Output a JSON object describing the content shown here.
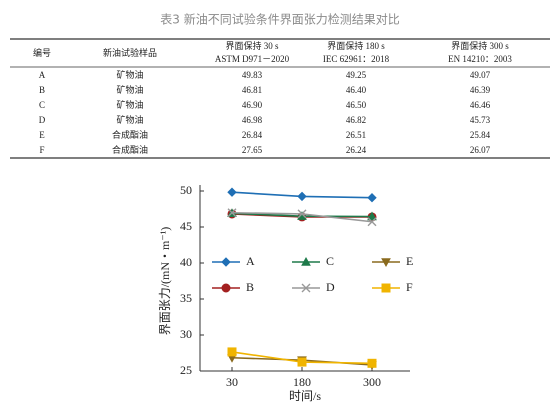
{
  "title": "表3 新油不同试验条件界面张力检测结果对比",
  "table": {
    "columns": [
      {
        "title": "编号"
      },
      {
        "title": "新油试验样品"
      },
      {
        "title": "界面保持 30 s",
        "standard": "ASTM D971－2020"
      },
      {
        "title": "界面保持 180 s",
        "standard": "IEC 62961：2018"
      },
      {
        "title": "界面保持 300 s",
        "standard": "EN 14210：2003"
      }
    ],
    "rows": [
      [
        "A",
        "矿物油",
        "49.83",
        "49.25",
        "49.07"
      ],
      [
        "B",
        "矿物油",
        "46.81",
        "46.40",
        "46.39"
      ],
      [
        "C",
        "矿物油",
        "46.90",
        "46.50",
        "46.46"
      ],
      [
        "D",
        "矿物油",
        "46.98",
        "46.82",
        "45.73"
      ],
      [
        "E",
        "合成酯油",
        "26.84",
        "26.51",
        "25.84"
      ],
      [
        "F",
        "合成酯油",
        "27.65",
        "26.24",
        "26.07"
      ]
    ]
  },
  "chart_data": {
    "type": "line",
    "x_label": "时间/s",
    "y_label": "界面张力/(mN・m⁻¹)",
    "categories": [
      "30",
      "180",
      "300"
    ],
    "ylim": [
      25,
      50
    ],
    "yticks": [
      25,
      30,
      35,
      40,
      45,
      50
    ],
    "series": [
      {
        "name": "A",
        "color": "#1f6fb5",
        "marker": "diamond",
        "values": [
          49.83,
          49.25,
          49.07
        ]
      },
      {
        "name": "B",
        "color": "#a32020",
        "marker": "circle",
        "values": [
          46.81,
          46.4,
          46.39
        ]
      },
      {
        "name": "C",
        "color": "#1e7a4a",
        "marker": "triangle",
        "values": [
          46.9,
          46.5,
          46.46
        ]
      },
      {
        "name": "D",
        "color": "#999999",
        "marker": "cross",
        "values": [
          46.98,
          46.82,
          45.73
        ]
      },
      {
        "name": "E",
        "color": "#8a6a1e",
        "marker": "triangle-down",
        "values": [
          26.84,
          26.51,
          25.84
        ]
      },
      {
        "name": "F",
        "color": "#f0b400",
        "marker": "square",
        "values": [
          27.65,
          26.24,
          26.07
        ]
      }
    ]
  }
}
